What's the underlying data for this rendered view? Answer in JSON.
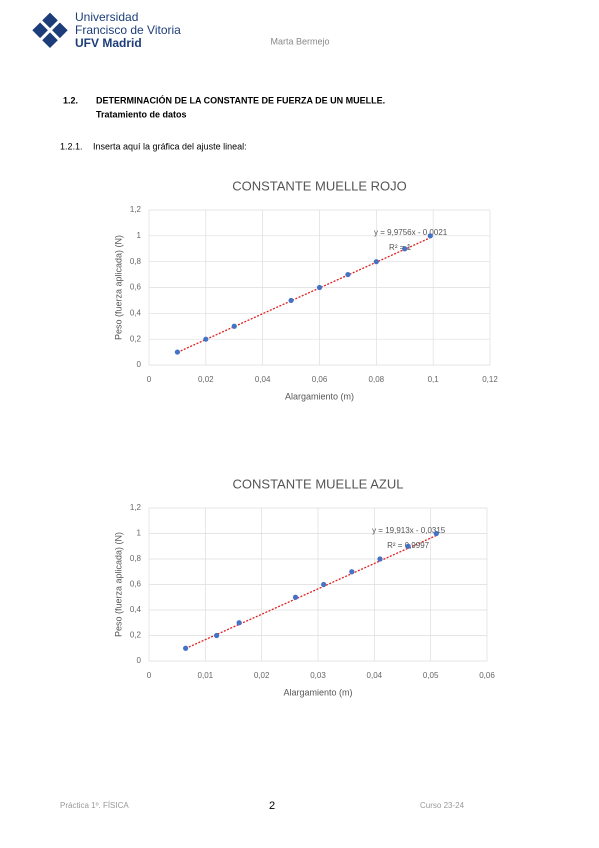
{
  "header": {
    "university": [
      "Universidad",
      "Francisco de Vitoria",
      "UFV Madrid"
    ],
    "author": "Marta Bermejo"
  },
  "section": {
    "number": "1.2.",
    "title": "DETERMINACIÓN DE LA CONSTANTE DE FUERZA DE UN MUELLE.",
    "subtitle": "Tratamiento de datos"
  },
  "subsection": {
    "number": "1.2.1.",
    "text": "Inserta aquí la gráfica del ajuste lineal:"
  },
  "chart_data": [
    {
      "type": "scatter",
      "title": "CONSTANTE MUELLE ROJO",
      "x_label": "Alargamiento (m)",
      "y_label": "Peso (fuerza aplicada) (N)",
      "x": [
        0.01,
        0.02,
        0.03,
        0.05,
        0.06,
        0.07,
        0.08,
        0.09,
        0.099
      ],
      "values": [
        0.1,
        0.2,
        0.3,
        0.5,
        0.6,
        0.7,
        0.8,
        0.9,
        1.0
      ],
      "color": "#4472c4",
      "grid": true,
      "trendline": {
        "slope": 9.9756,
        "intercept": -0.0021,
        "color": "#e02020"
      },
      "annotations": [
        "y = 9,9756x - 0,0021",
        "R² = 1"
      ],
      "xlim": [
        0,
        0.12
      ],
      "xticks": [
        0,
        {
          "value": 0.02,
          "label": "0,02"
        },
        {
          "value": 0.04,
          "label": "0,04"
        },
        {
          "value": 0.06,
          "label": "0,06"
        },
        {
          "value": 0.08,
          "label": "0,08"
        },
        {
          "value": 0.1,
          "label": "0,1"
        },
        {
          "value": 0.12,
          "label": "0,12"
        }
      ],
      "ylim": [
        0,
        1.2
      ],
      "yticks": [
        0,
        {
          "value": 0.2,
          "label": "0,2"
        },
        {
          "value": 0.4,
          "label": "0,4"
        },
        {
          "value": 0.6,
          "label": "0,6"
        },
        {
          "value": 0.8,
          "label": "0,8"
        },
        1,
        {
          "value": 1.2,
          "label": "1,2"
        }
      ]
    },
    {
      "type": "scatter",
      "title": "CONSTANTE MUELLE AZUL",
      "x_label": "Alargamiento (m)",
      "y_label": "Peso (fuerza aplicada) (N)",
      "x": [
        0.0065,
        0.012,
        0.016,
        0.026,
        0.031,
        0.036,
        0.041,
        0.046,
        0.051
      ],
      "values": [
        0.1,
        0.2,
        0.3,
        0.5,
        0.6,
        0.7,
        0.8,
        0.9,
        1.0
      ],
      "color": "#4472c4",
      "grid": true,
      "trendline": {
        "slope": 19.913,
        "intercept": -0.0315,
        "color": "#e02020"
      },
      "annotations": [
        "y = 19,913x - 0,0315",
        "R² = 0,9997"
      ],
      "xlim": [
        0,
        0.06
      ],
      "xticks": [
        0,
        {
          "value": 0.01,
          "label": "0,01"
        },
        {
          "value": 0.02,
          "label": "0,02"
        },
        {
          "value": 0.03,
          "label": "0,03"
        },
        {
          "value": 0.04,
          "label": "0,04"
        },
        {
          "value": 0.05,
          "label": "0,05"
        },
        {
          "value": 0.06,
          "label": "0,06"
        }
      ],
      "ylim": [
        0,
        1.2
      ],
      "yticks": [
        0,
        {
          "value": 0.2,
          "label": "0,2"
        },
        {
          "value": 0.4,
          "label": "0,4"
        },
        {
          "value": 0.6,
          "label": "0,6"
        },
        {
          "value": 0.8,
          "label": "0,8"
        },
        1,
        {
          "value": 1.2,
          "label": "1,2"
        }
      ]
    }
  ],
  "footer": {
    "left": "Práctica 1º. FÍSICA",
    "page": "2",
    "right": "Curso 23-24"
  }
}
